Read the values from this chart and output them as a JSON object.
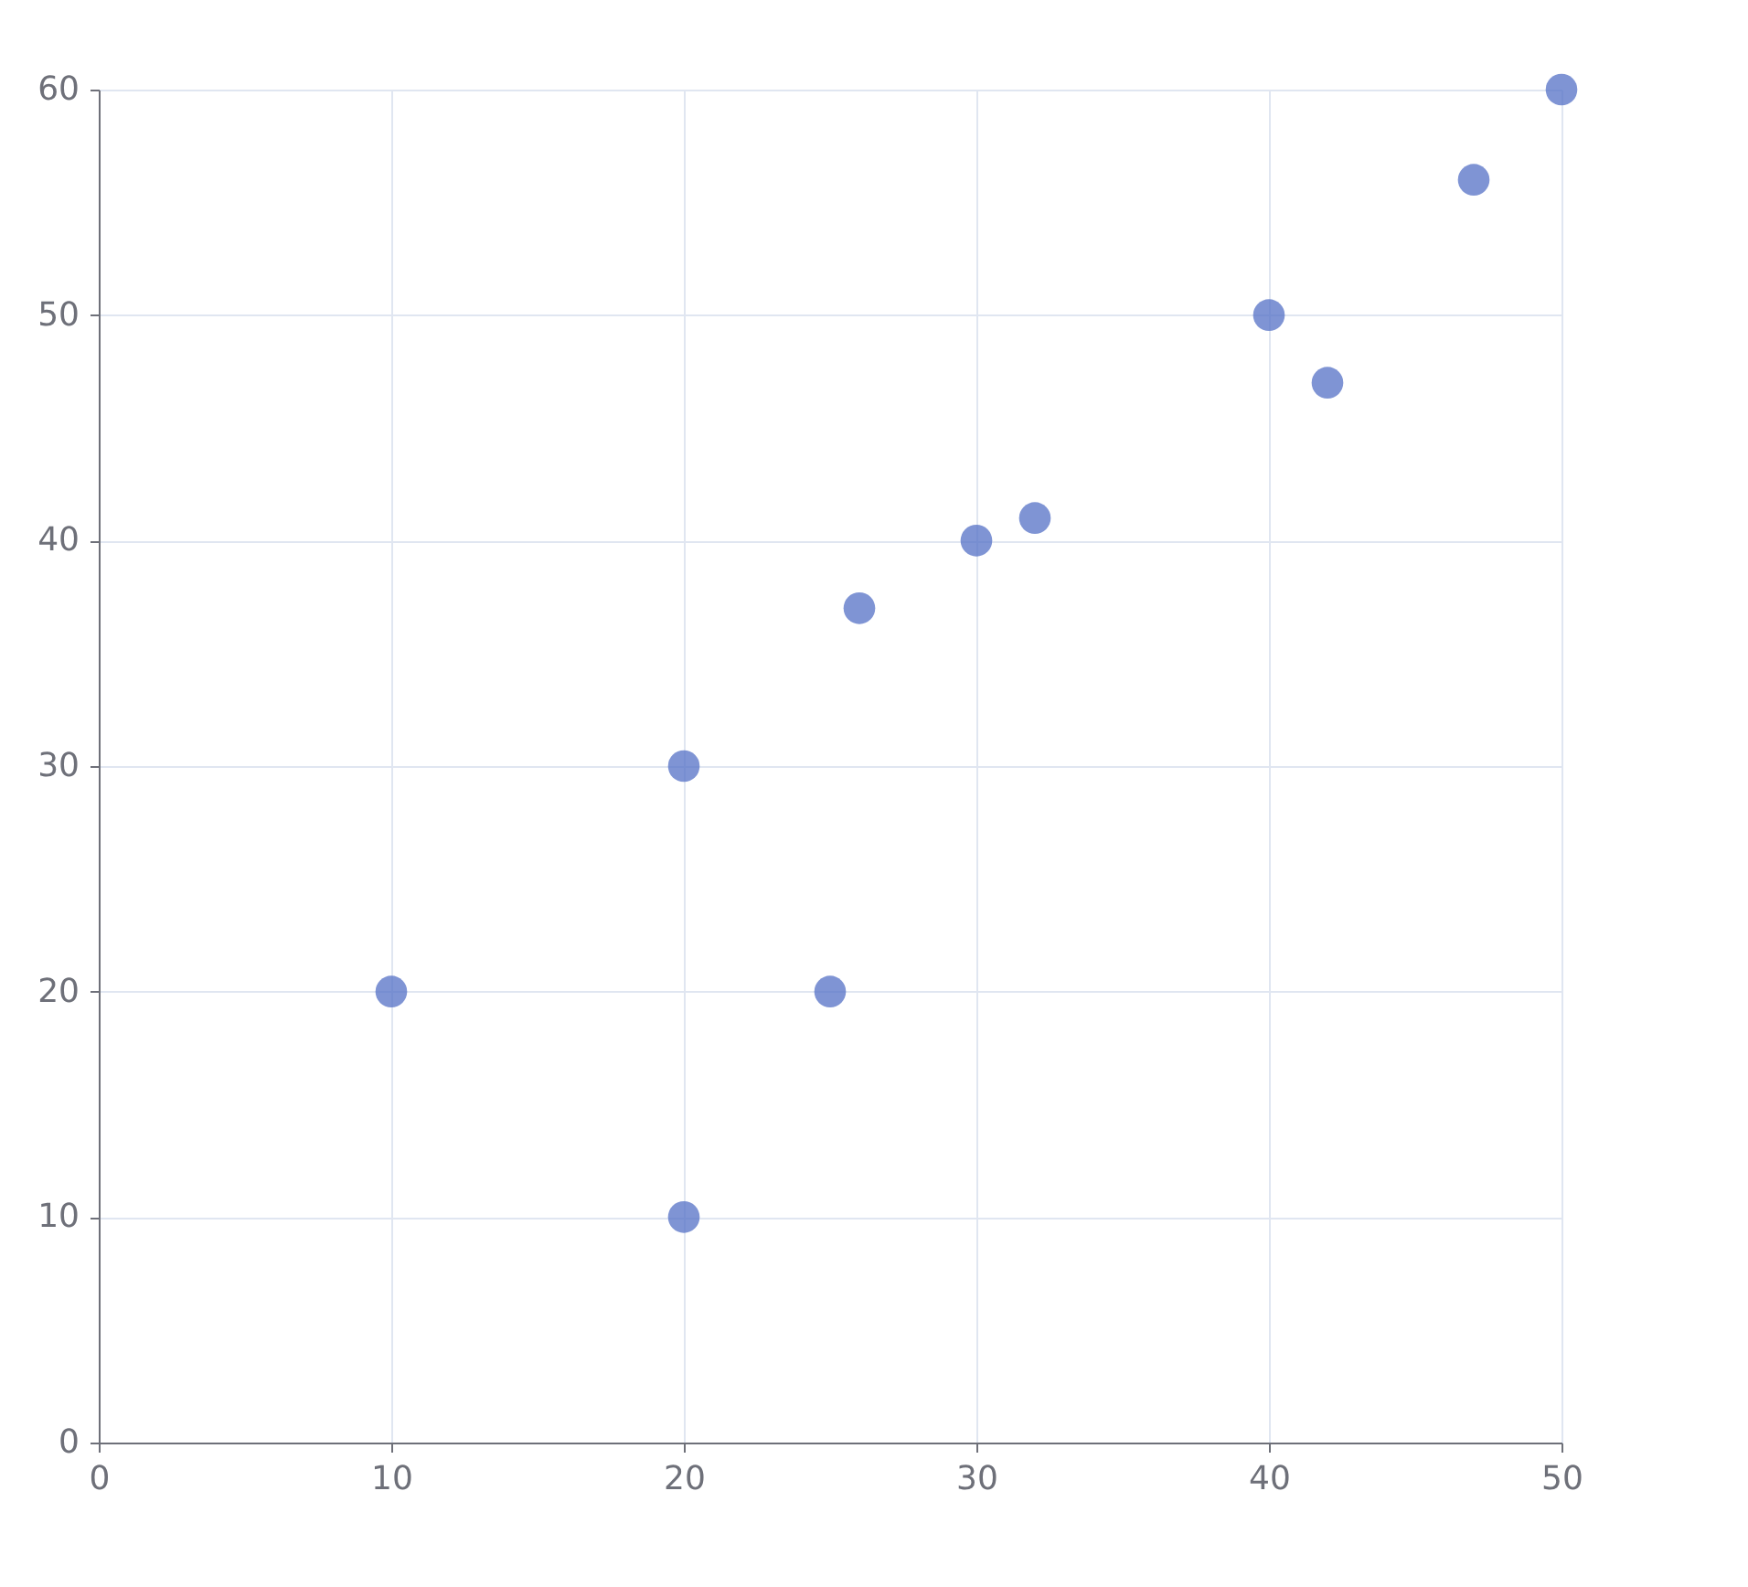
{
  "chart_data": {
    "type": "scatter",
    "x": [
      10,
      20,
      20,
      25,
      26,
      30,
      32,
      40,
      42,
      47,
      50
    ],
    "series": [
      {
        "color": "#5470c6",
        "values": [
          20,
          30,
          10,
          20,
          37,
          40,
          41,
          50,
          47,
          56,
          60
        ]
      }
    ],
    "xlim": [
      0,
      50
    ],
    "ylim": [
      0,
      60
    ],
    "xticks": [
      0,
      10,
      20,
      30,
      40,
      50
    ],
    "yticks": [
      0,
      10,
      20,
      30,
      40,
      50,
      60
    ],
    "grid": true,
    "marker": "circle"
  }
}
